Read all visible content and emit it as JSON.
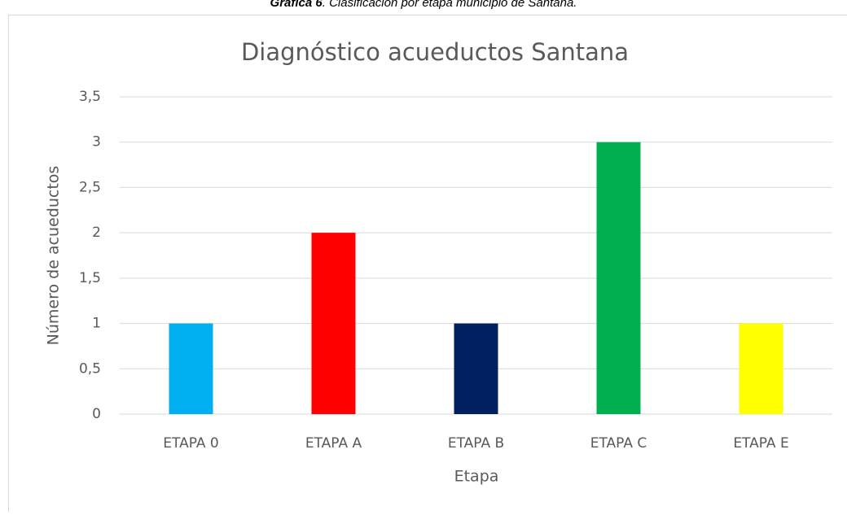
{
  "caption": {
    "label": "Gráfica 6",
    "text": ". Clasificación por etapa municipio de Santana."
  },
  "chart_data": {
    "type": "bar",
    "title": "Diagnóstico acueductos Santana",
    "x_label": "Etapa",
    "y_label": "Número de acueductos",
    "categories": [
      "ETAPA 0",
      "ETAPA A",
      "ETAPA B",
      "ETAPA C",
      "ETAPA E"
    ],
    "values": [
      1,
      2,
      1,
      3,
      1
    ],
    "colors": [
      "#00b0f0",
      "#ff0000",
      "#002060",
      "#00b050",
      "#ffff00"
    ],
    "ylim": [
      0,
      3.5
    ],
    "yticks": [
      0,
      {
        "value": 0.5,
        "label": "0,5"
      },
      1,
      {
        "value": 1.5,
        "label": "1,5"
      },
      2,
      {
        "value": 2.5,
        "label": "2,5"
      },
      3,
      {
        "value": 3.5,
        "label": "3,5"
      }
    ],
    "grid": true
  }
}
